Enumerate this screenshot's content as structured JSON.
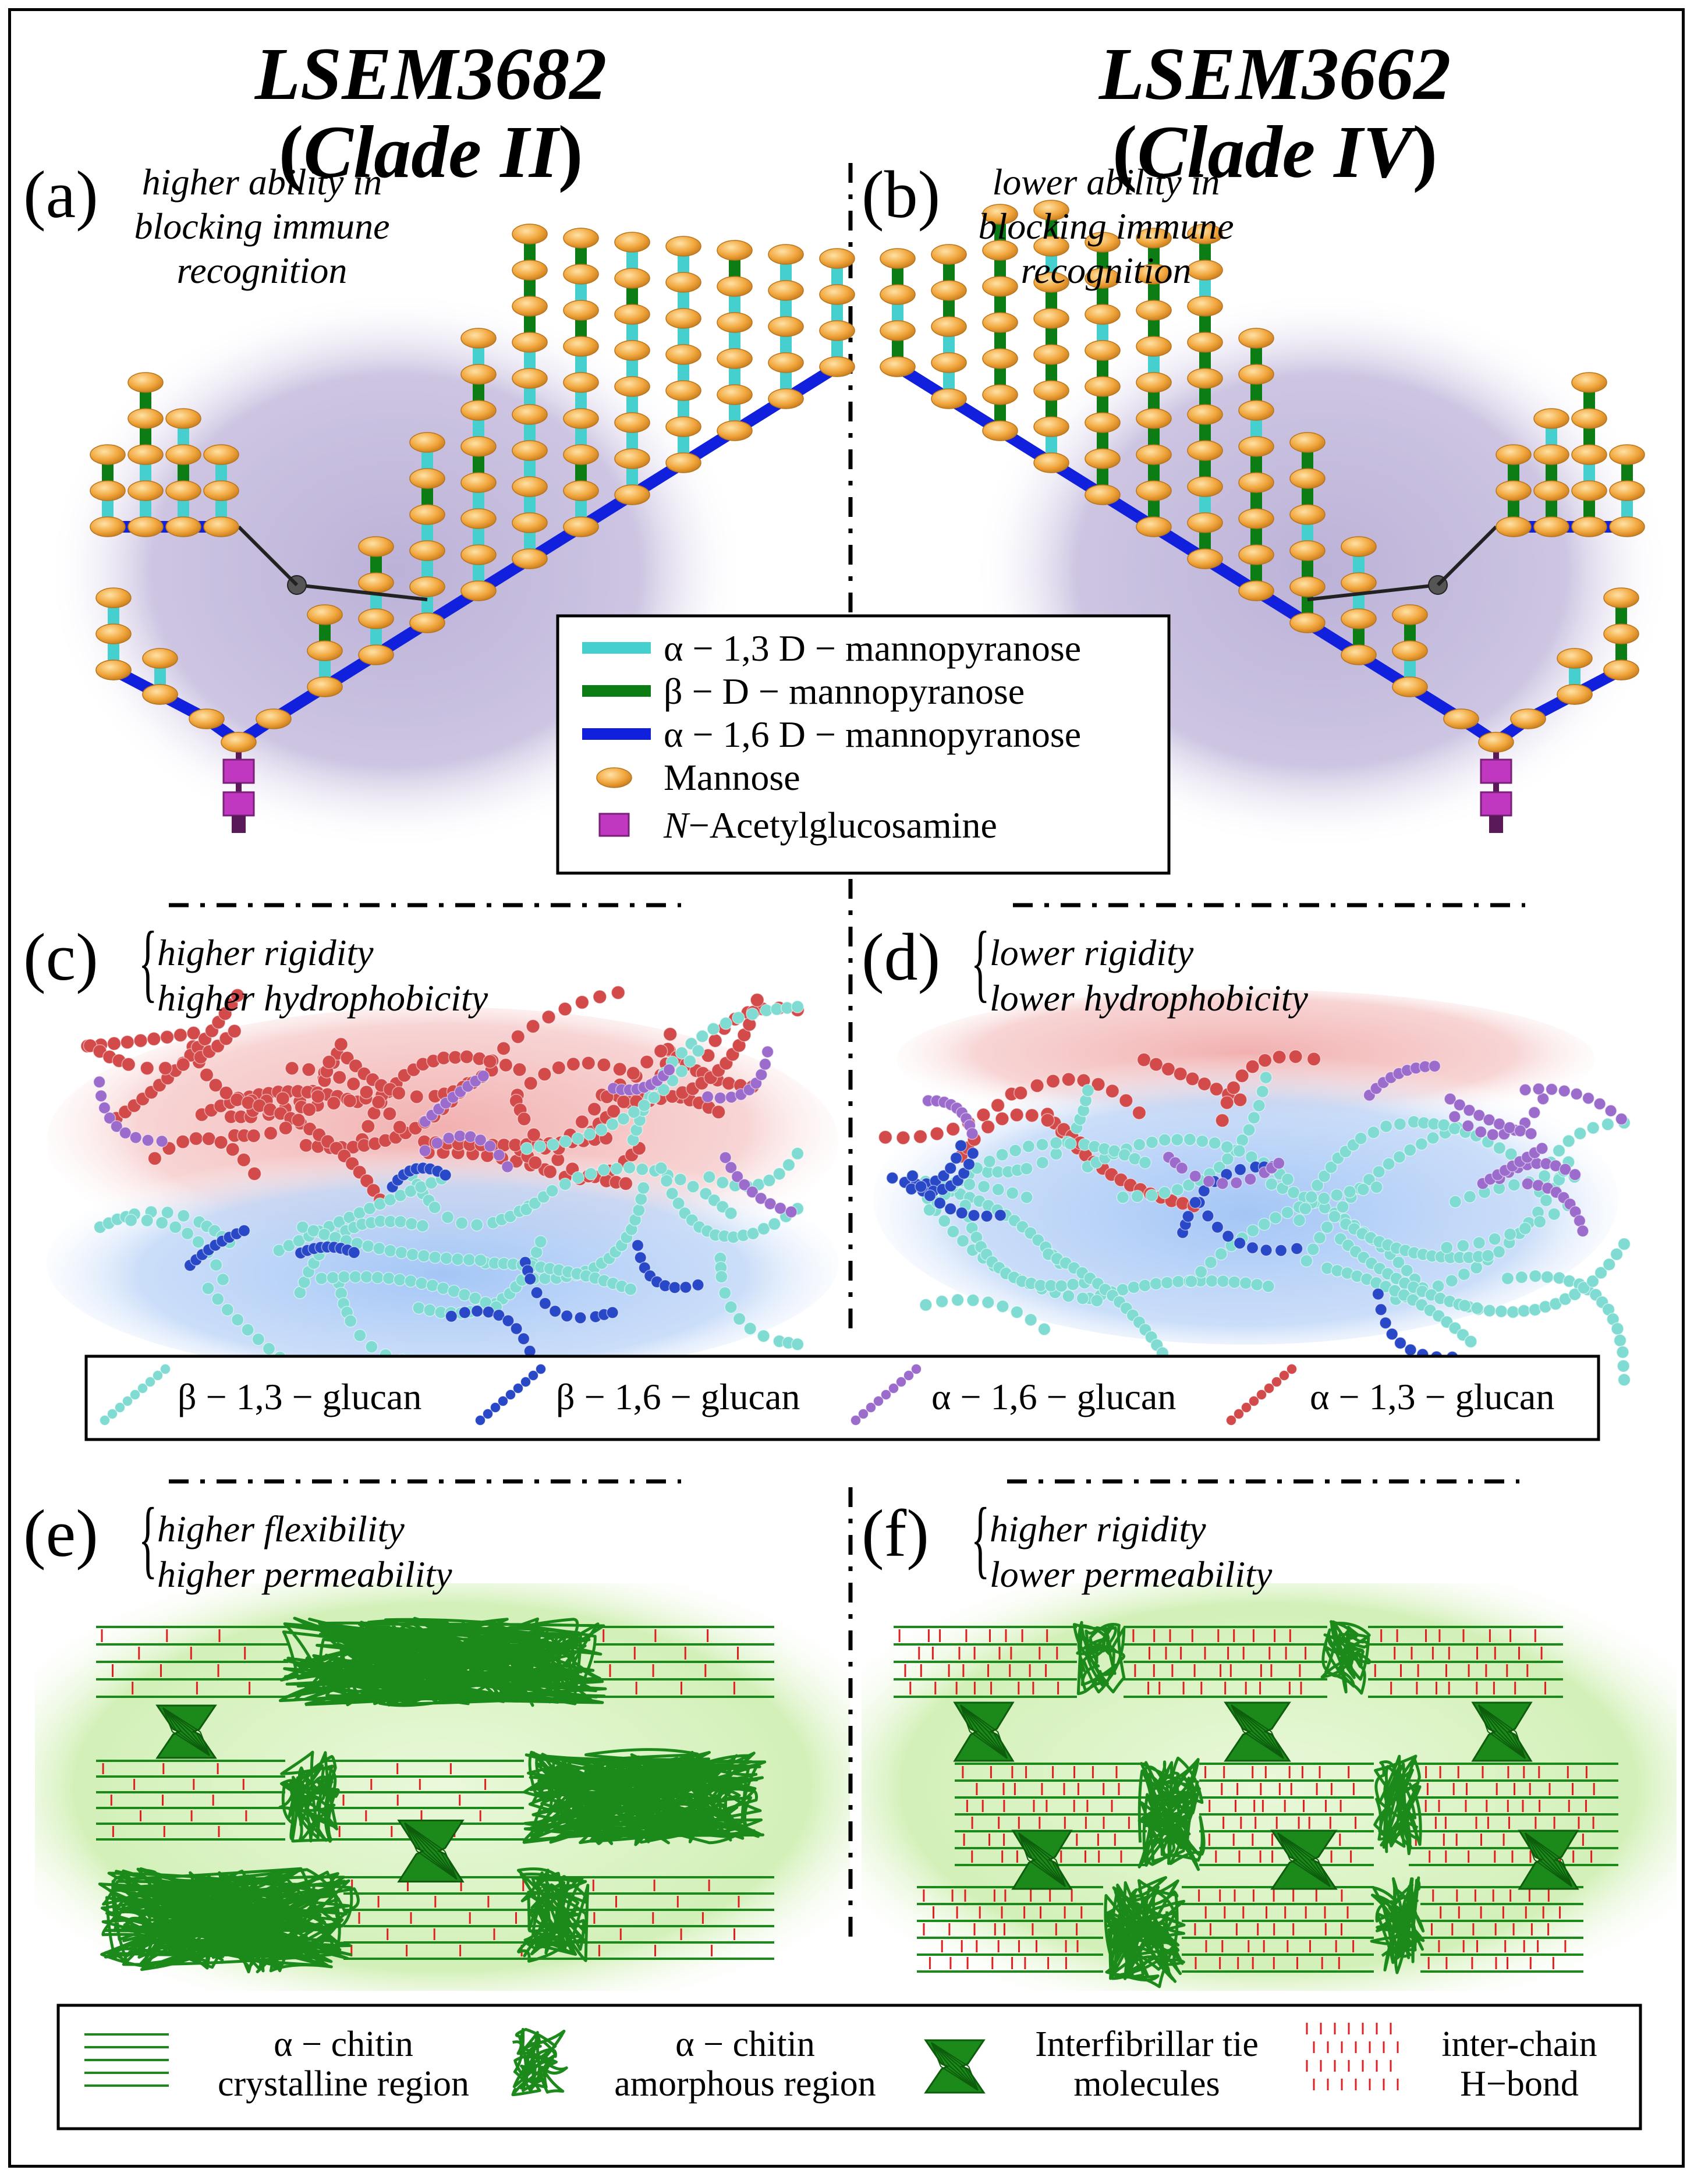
{
  "columns": {
    "left": {
      "strain": "LSEM3682",
      "clade": "Clade II"
    },
    "right": {
      "strain": "LSEM3662",
      "clade": "Clade IV"
    }
  },
  "panels": {
    "a": {
      "letter": "(a)",
      "lines": [
        "higher ability in",
        "blocking immune",
        "recognition"
      ]
    },
    "b": {
      "letter": "(b)",
      "lines": [
        "lower ability in",
        "blocking immune",
        "recognition"
      ]
    },
    "c": {
      "letter": "(c)",
      "lines": [
        "higher rigidity",
        "higher hydrophobicity"
      ]
    },
    "d": {
      "letter": "(d)",
      "lines": [
        "lower rigidity",
        "lower hydrophobicity"
      ]
    },
    "e": {
      "letter": "(e)",
      "lines": [
        "higher flexibility",
        "higher permeability"
      ]
    },
    "f": {
      "letter": "(f)",
      "lines": [
        "higher rigidity",
        "lower permeability"
      ]
    }
  },
  "mannan_legend": [
    {
      "label": "α − 1,3 D − mannopyranose",
      "swatch": "line",
      "color": "#45d0cf"
    },
    {
      "label": "β − D − mannopyranose",
      "swatch": "line",
      "color": "#0b7d14"
    },
    {
      "label": "α − 1,6 D − mannopyranose",
      "swatch": "line",
      "color": "#1020dd"
    },
    {
      "label": "Mannose",
      "swatch": "ellipse",
      "color": "#f0a53a"
    },
    {
      "label_italic": "N",
      "label": "−Acetylglucosamine",
      "swatch": "square",
      "color": "#c038c0"
    }
  ],
  "glucan_legend": [
    {
      "label": "β − 1,3 − glucan",
      "color": "#7fd9d0"
    },
    {
      "label": "β − 1,6 − glucan",
      "color": "#2040c0"
    },
    {
      "label": "α − 1,6 − glucan",
      "color": "#9a6ac8"
    },
    {
      "label": "α − 1,3 − glucan",
      "color": "#d04040"
    }
  ],
  "chitin_legend": [
    {
      "lines": [
        "α − chitin",
        "crystalline region"
      ],
      "icon": "crystalline-lines-icon"
    },
    {
      "lines": [
        "α − chitin",
        "amorphous region"
      ],
      "icon": "amorphous-tangle-icon"
    },
    {
      "lines": [
        "Interfibrillar tie",
        "molecules"
      ],
      "icon": "tie-molecule-x-icon"
    },
    {
      "lines": [
        "inter-chain",
        "H−bond"
      ],
      "icon": "hbond-dashes-icon"
    }
  ],
  "colors": {
    "alpha13": "#45d0cf",
    "beta": "#0b7d14",
    "alpha16": "#1020dd",
    "mannose": "#f0a53a",
    "nag": "#c038c0",
    "chitin": "#1b8a1b",
    "hbond": "#e02020",
    "mannan_bg": "#c4bbdc",
    "glucan_red_bg": "#f0b0b0",
    "glucan_blue_bg": "#a8c8f4",
    "chitin_bg": "#d6f2bc"
  }
}
